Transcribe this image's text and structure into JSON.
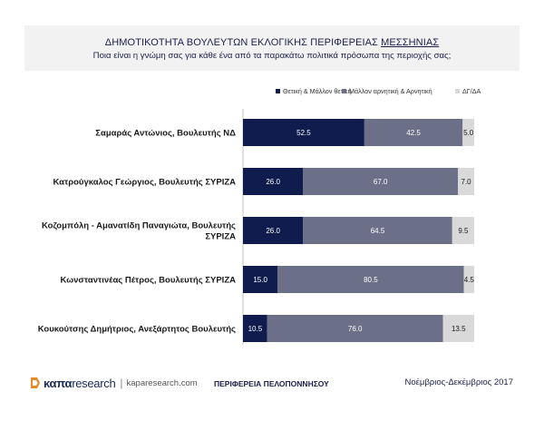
{
  "header": {
    "title_prefix": "ΔΗΜΟΤΙΚΟΤΗΤΑ ΒΟΥΛΕΥΤΩΝ ΕΚΛΟΓΙΚΗΣ ΠΕΡΙΦΕΡΕΙΑΣ ",
    "title_region": "ΜΕΣΣΗΝΙΑΣ",
    "subtitle": "Ποια είναι η γνώμη σας για κάθε ένα από τα παρακάτω πολιτικά πρόσωπα της περιοχής σας;"
  },
  "colors": {
    "positive": "#0f1c4d",
    "negative": "#6b6f87",
    "dk": "#d9d9d9",
    "header_bg": "#f2f2f2"
  },
  "chart_data": {
    "type": "bar",
    "orientation": "horizontal",
    "stacked": true,
    "categories": [
      [
        "Σαμαράς Αντώνιος, Βουλευτής ΝΔ"
      ],
      [
        "Κατρούγκαλος Γεώργιος, Βουλευτής ΣΥΡΙΖΑ"
      ],
      [
        "Κοζομπόλη - Αμανατίδη Παναγιώτα, Βουλευτής",
        "ΣΥΡΙΖΑ"
      ],
      [
        "Κωνσταντινέας Πέτρος, Βουλευτής ΣΥΡΙΖΑ"
      ],
      [
        "Κουκούτσης Δημήτριος, Ανεξάρτητος Βουλευτής"
      ]
    ],
    "series": [
      {
        "name": "Θετική & Μάλλον θετική",
        "color_key": "positive",
        "values": [
          52.5,
          26.0,
          26.0,
          15.0,
          10.5
        ],
        "labels": [
          "52.5",
          "26.0",
          "26.0",
          "15.0",
          "10.5"
        ]
      },
      {
        "name": "Μάλλον αρνητική & Αρνητική",
        "color_key": "negative",
        "values": [
          42.5,
          67.0,
          64.5,
          80.5,
          76.0
        ],
        "labels": [
          "42.5",
          "67.0",
          "64.5",
          "80.5",
          "76.0"
        ]
      },
      {
        "name": "ΔΓ/ΔΑ",
        "color_key": "dk",
        "values": [
          5.0,
          7.0,
          9.5,
          4.5,
          13.5
        ],
        "labels": [
          "5.0",
          "7.0",
          "9.5",
          "4.5",
          "13.5"
        ]
      }
    ],
    "xlim": [
      0,
      100
    ],
    "legend_position": "top-right",
    "grid": false
  },
  "footer": {
    "logo_a": "καπα",
    "logo_b": "research",
    "separator": "|",
    "url": "kaparesearch.com",
    "region": "ΠΕΡΙΦΕΡΕΙΑ ΠΕΛΟΠΟΝΝΗΣΟΥ",
    "date": "Νοέμβριος-Δεκέμβριος 2017"
  }
}
